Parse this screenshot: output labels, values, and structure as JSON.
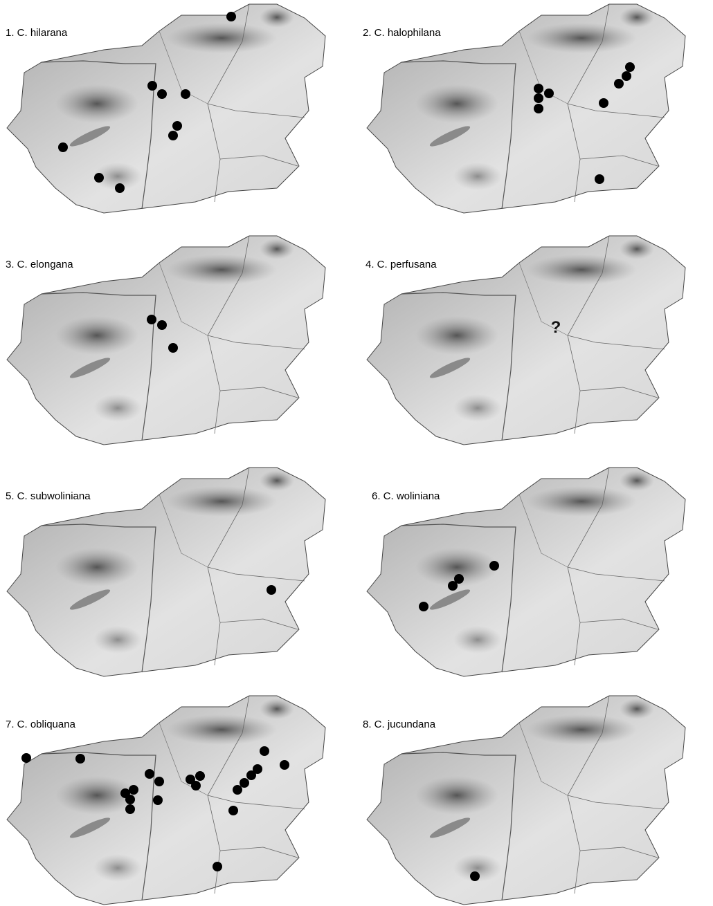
{
  "maps": [
    {
      "label": "1. C. hilarana"
    },
    {
      "label": "2. C. halophilana"
    },
    {
      "label": "3. C. elongana"
    },
    {
      "label": "4. C. perfusana",
      "annotation": "?"
    },
    {
      "label": "5. C. subwoliniana"
    },
    {
      "label": "6. C. woliniana"
    },
    {
      "label": "7. C. obliquana"
    },
    {
      "label": "8. C. jucundana"
    }
  ]
}
